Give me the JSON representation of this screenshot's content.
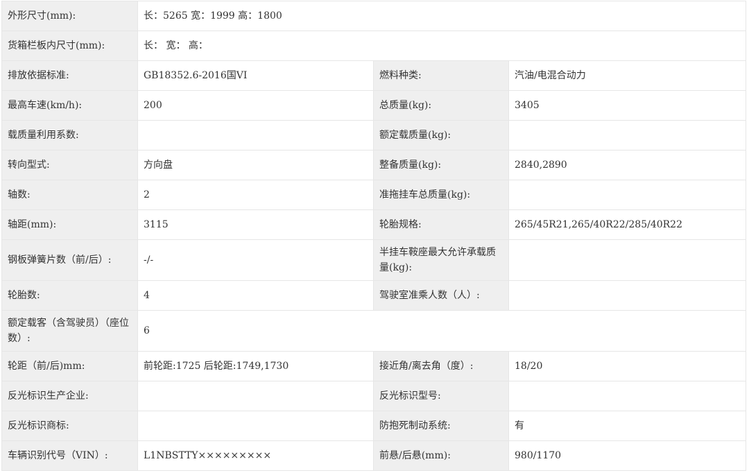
{
  "rows": [
    {
      "l1": "外形尺寸(mm):",
      "v1": "长：5265 宽：1999 高：1800"
    },
    {
      "l1": "货箱栏板内尺寸(mm):",
      "v1": "长： 宽： 高："
    },
    {
      "l1": "排放依据标准:",
      "v1": "GB18352.6-2016国VI",
      "l2": "燃料种类:",
      "v2": "汽油/电混合动力"
    },
    {
      "l1": "最高车速(km/h):",
      "v1": "200",
      "l2": "总质量(kg):",
      "v2": "3405"
    },
    {
      "l1": "载质量利用系数:",
      "v1": "",
      "l2": "额定载质量(kg):",
      "v2": ""
    },
    {
      "l1": "转向型式:",
      "v1": "方向盘",
      "l2": "整备质量(kg):",
      "v2": "2840,2890"
    },
    {
      "l1": "轴数:",
      "v1": "2",
      "l2": "准拖挂车总质量(kg):",
      "v2": ""
    },
    {
      "l1": "轴距(mm):",
      "v1": "3115",
      "l2": "轮胎规格:",
      "v2": "265/45R21,265/40R22/285/40R22"
    },
    {
      "l1": "钢板弹簧片数（前/后）:",
      "v1": "-/-",
      "l2": "半挂车鞍座最大允许承载质量(kg):",
      "v2": ""
    },
    {
      "l1": "轮胎数:",
      "v1": "4",
      "l2": "驾驶室准乘人数（人）:",
      "v2": ""
    },
    {
      "l1": "额定载客（含驾驶员）（座位数）:",
      "v1": "6"
    },
    {
      "l1": "轮距（前/后)mm:",
      "v1": "前轮距:1725 后轮距:1749,1730",
      "l2": "接近角/离去角（度）:",
      "v2": "18/20"
    },
    {
      "l1": "反光标识生产企业:",
      "v1": "",
      "l2": "反光标识型号:",
      "v2": ""
    },
    {
      "l1": "反光标识商标:",
      "v1": "",
      "l2": "防抱死制动系统:",
      "v2": "有"
    },
    {
      "l1": "车辆识别代号（VIN）:",
      "v1": "L1NBSTTY×××××××××",
      "l2": "前悬/后悬(mm):",
      "v2": "980/1170"
    }
  ]
}
